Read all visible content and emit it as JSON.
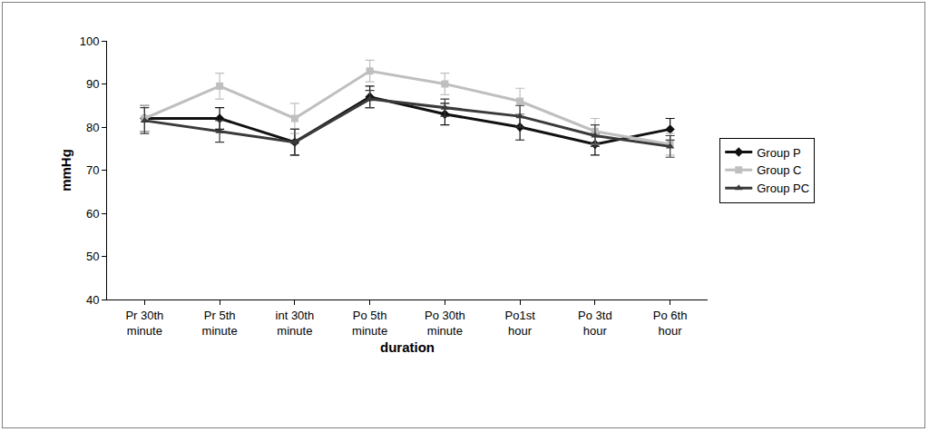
{
  "chart_data": {
    "type": "line",
    "x_label": "duration",
    "y_label": "mmHg",
    "categories": [
      "Pr 30th minute",
      "Pr 5th minute",
      "int 30th minute",
      "Po 5th minute",
      "Po 30th minute",
      "Po1st hour",
      "Po 3td hour",
      "Po 6th hour"
    ],
    "series": [
      {
        "name": "Group P",
        "color": "#111111",
        "marker": "diamond",
        "values": [
          82,
          82,
          76.5,
          87,
          83,
          80,
          76,
          79.5
        ],
        "errors": [
          3,
          2.5,
          3,
          2.5,
          2.5,
          3,
          2.5,
          2.5
        ]
      },
      {
        "name": "Group C",
        "color": "#bfbfbf",
        "marker": "square",
        "values": [
          82,
          89.5,
          82,
          93,
          90,
          86,
          79,
          76
        ],
        "errors": [
          3,
          3,
          3.5,
          2.5,
          2.5,
          3,
          3,
          2.5
        ]
      },
      {
        "name": "Group PC",
        "color": "#3a3a3a",
        "marker": "triangle-up",
        "values": [
          81.5,
          79,
          76.5,
          86.5,
          84.5,
          82.5,
          78,
          75.5
        ],
        "errors": [
          3,
          2.5,
          3,
          2,
          2,
          2.5,
          2.5,
          2.5
        ]
      }
    ],
    "ylim": [
      40,
      100
    ],
    "yticks": [
      40,
      50,
      60,
      70,
      80,
      90,
      100
    ],
    "grid": false,
    "legend": "right"
  }
}
